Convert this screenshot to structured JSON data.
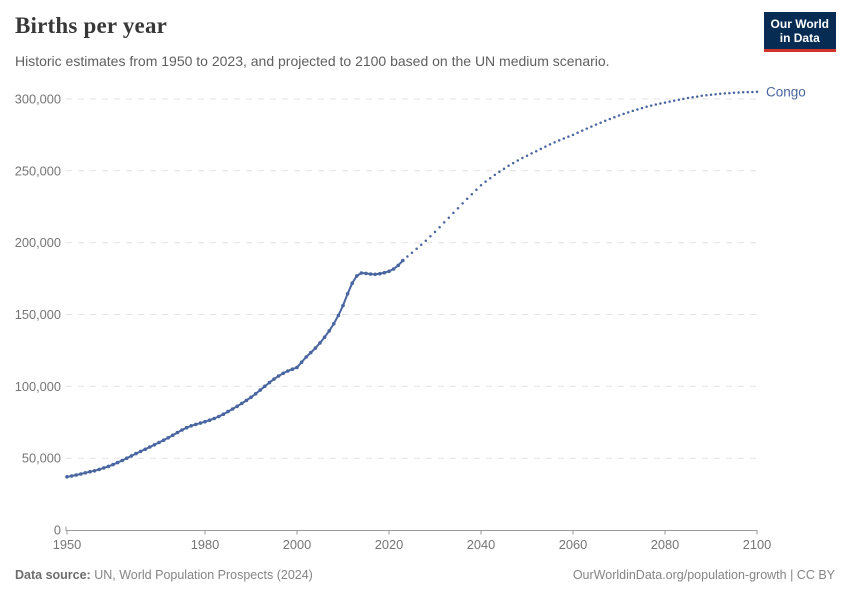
{
  "header": {
    "title": "Births per year",
    "subtitle": "Historic estimates from 1950 to 2023, and projected to 2100 based on the UN medium scenario."
  },
  "logo": {
    "line1": "Our World",
    "line2": "in Data",
    "bg_color": "#072C54",
    "bar_color": "#D0342C"
  },
  "chart_data": {
    "type": "line",
    "title": "Births per year",
    "subtitle": "Historic estimates from 1950 to 2023, and projected to 2100 based on the UN medium scenario.",
    "entity": "Congo",
    "end_label": "Congo",
    "line_color": "#4A66A0",
    "xlabel": "",
    "ylabel": "",
    "xlim": [
      1950,
      2100
    ],
    "ylim": [
      0,
      300000
    ],
    "x_ticks": [
      1950,
      1980,
      2000,
      2020,
      2040,
      2060,
      2080,
      2100
    ],
    "y_ticks": [
      0,
      50000,
      100000,
      150000,
      200000,
      250000,
      300000
    ],
    "grid": "horizontal-dashed",
    "legend_position": "end-of-line-label",
    "colors": {
      "grid": "#E2E2E2",
      "axis": "#9B9B9B",
      "tick_label": "#757575"
    },
    "series": [
      {
        "name": "Congo — historic estimates",
        "style": "solid-with-markers",
        "points": [
          [
            1950,
            37000
          ],
          [
            1951,
            37600
          ],
          [
            1952,
            38300
          ],
          [
            1953,
            39000
          ],
          [
            1954,
            39800
          ],
          [
            1955,
            40600
          ],
          [
            1956,
            41200
          ],
          [
            1957,
            42200
          ],
          [
            1958,
            43200
          ],
          [
            1959,
            44300
          ],
          [
            1960,
            45500
          ],
          [
            1961,
            46900
          ],
          [
            1962,
            48400
          ],
          [
            1963,
            50000
          ],
          [
            1964,
            51600
          ],
          [
            1965,
            53200
          ],
          [
            1966,
            54700
          ],
          [
            1967,
            56200
          ],
          [
            1968,
            57800
          ],
          [
            1969,
            59300
          ],
          [
            1970,
            60900
          ],
          [
            1971,
            62500
          ],
          [
            1972,
            64200
          ],
          [
            1973,
            66000
          ],
          [
            1974,
            67800
          ],
          [
            1975,
            69600
          ],
          [
            1976,
            71200
          ],
          [
            1977,
            72500
          ],
          [
            1978,
            73500
          ],
          [
            1979,
            74400
          ],
          [
            1980,
            75400
          ],
          [
            1981,
            76400
          ],
          [
            1982,
            77600
          ],
          [
            1983,
            79000
          ],
          [
            1984,
            80600
          ],
          [
            1985,
            82400
          ],
          [
            1986,
            84200
          ],
          [
            1987,
            86100
          ],
          [
            1988,
            88100
          ],
          [
            1989,
            90200
          ],
          [
            1990,
            92400
          ],
          [
            1991,
            94800
          ],
          [
            1992,
            97400
          ],
          [
            1993,
            100000
          ],
          [
            1994,
            102600
          ],
          [
            1995,
            105000
          ],
          [
            1996,
            107200
          ],
          [
            1997,
            109100
          ],
          [
            1998,
            110700
          ],
          [
            1999,
            111900
          ],
          [
            2000,
            113200
          ],
          [
            2001,
            116800
          ],
          [
            2002,
            120400
          ],
          [
            2003,
            123500
          ],
          [
            2004,
            126600
          ],
          [
            2005,
            130200
          ],
          [
            2006,
            134200
          ],
          [
            2007,
            138600
          ],
          [
            2008,
            143600
          ],
          [
            2009,
            149400
          ],
          [
            2010,
            156200
          ],
          [
            2011,
            164400
          ],
          [
            2012,
            171800
          ],
          [
            2013,
            176900
          ],
          [
            2014,
            178900
          ],
          [
            2015,
            178600
          ],
          [
            2016,
            178100
          ],
          [
            2017,
            178000
          ],
          [
            2018,
            178400
          ],
          [
            2019,
            179100
          ],
          [
            2020,
            180100
          ],
          [
            2021,
            181700
          ],
          [
            2022,
            184200
          ],
          [
            2023,
            187500
          ]
        ]
      },
      {
        "name": "Congo — UN medium scenario projection",
        "style": "dotted",
        "points": [
          [
            2024,
            190400
          ],
          [
            2025,
            193000
          ],
          [
            2026,
            195700
          ],
          [
            2027,
            198500
          ],
          [
            2028,
            201400
          ],
          [
            2029,
            204400
          ],
          [
            2030,
            207500
          ],
          [
            2031,
            210800
          ],
          [
            2032,
            214100
          ],
          [
            2033,
            217400
          ],
          [
            2034,
            220700
          ],
          [
            2035,
            224000
          ],
          [
            2036,
            227300
          ],
          [
            2037,
            230500
          ],
          [
            2038,
            233700
          ],
          [
            2039,
            236900
          ],
          [
            2040,
            240000
          ],
          [
            2041,
            242500
          ],
          [
            2042,
            244900
          ],
          [
            2043,
            247200
          ],
          [
            2044,
            249400
          ],
          [
            2045,
            251500
          ],
          [
            2046,
            253500
          ],
          [
            2047,
            255400
          ],
          [
            2048,
            257200
          ],
          [
            2049,
            258900
          ],
          [
            2050,
            260500
          ],
          [
            2051,
            262100
          ],
          [
            2052,
            263700
          ],
          [
            2053,
            265300
          ],
          [
            2054,
            266900
          ],
          [
            2055,
            268400
          ],
          [
            2056,
            269800
          ],
          [
            2057,
            271200
          ],
          [
            2058,
            272500
          ],
          [
            2059,
            273800
          ],
          [
            2060,
            275000
          ],
          [
            2061,
            276500
          ],
          [
            2062,
            278000
          ],
          [
            2063,
            279400
          ],
          [
            2064,
            280800
          ],
          [
            2065,
            282200
          ],
          [
            2066,
            283500
          ],
          [
            2067,
            284800
          ],
          [
            2068,
            286100
          ],
          [
            2069,
            287300
          ],
          [
            2070,
            288500
          ],
          [
            2071,
            289600
          ],
          [
            2072,
            290700
          ],
          [
            2073,
            291700
          ],
          [
            2074,
            292700
          ],
          [
            2075,
            293700
          ],
          [
            2076,
            294600
          ],
          [
            2077,
            295400
          ],
          [
            2078,
            296200
          ],
          [
            2079,
            296900
          ],
          [
            2080,
            297500
          ],
          [
            2081,
            298200
          ],
          [
            2082,
            298900
          ],
          [
            2083,
            299500
          ],
          [
            2084,
            300100
          ],
          [
            2085,
            300700
          ],
          [
            2086,
            301200
          ],
          [
            2087,
            301700
          ],
          [
            2088,
            302200
          ],
          [
            2089,
            302600
          ],
          [
            2090,
            303000
          ],
          [
            2091,
            303300
          ],
          [
            2092,
            303600
          ],
          [
            2093,
            303900
          ],
          [
            2094,
            304100
          ],
          [
            2095,
            304300
          ],
          [
            2096,
            304500
          ],
          [
            2097,
            304700
          ],
          [
            2098,
            304800
          ],
          [
            2099,
            304900
          ],
          [
            2100,
            305000
          ]
        ]
      }
    ]
  },
  "footer": {
    "source_label": "Data source:",
    "source_value": "UN, World Population Prospects (2024)",
    "right_text": "OurWorldinData.org/population-growth | CC BY"
  }
}
